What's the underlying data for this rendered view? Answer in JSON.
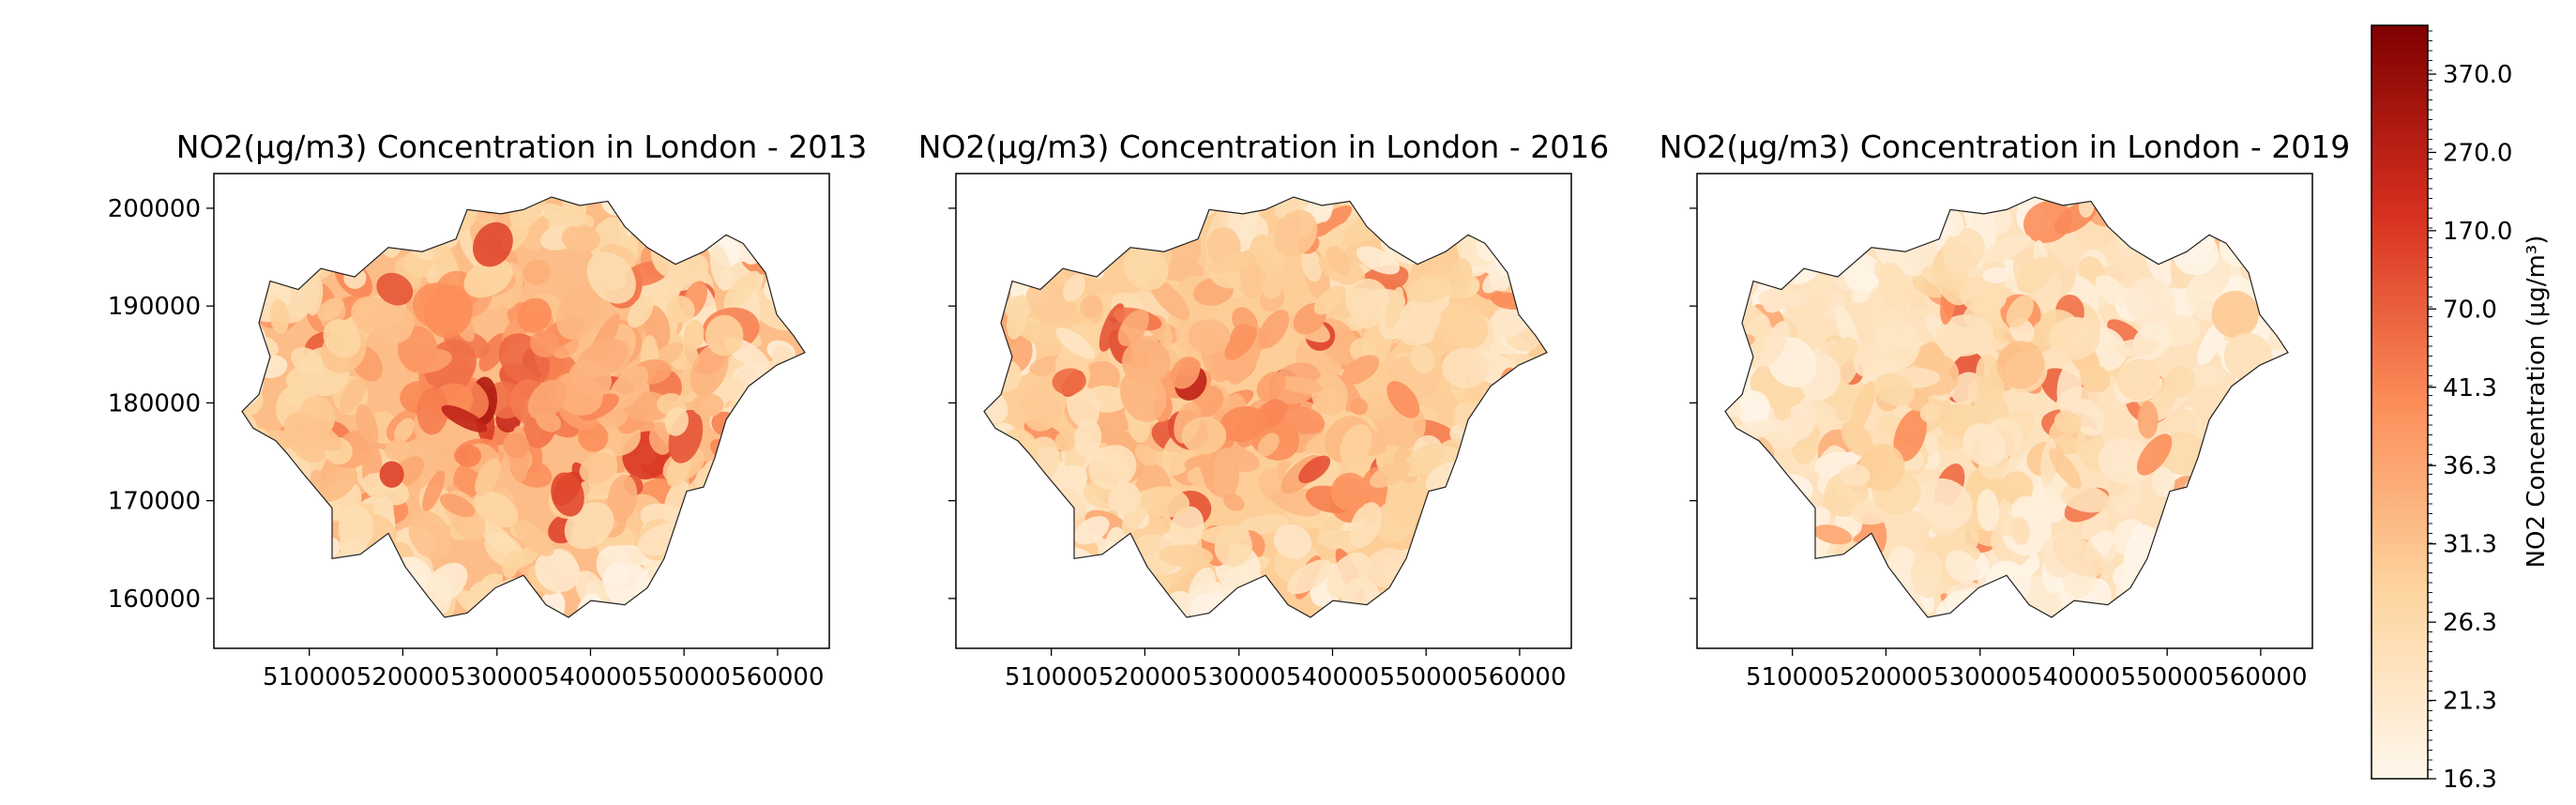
{
  "panels": [
    {
      "title": "NO2(μg/m3) Concentration in London - 2013",
      "x_ticks": [
        "510000",
        "520000",
        "530000",
        "540000",
        "550000",
        "560000"
      ],
      "y_ticks": [
        "200000",
        "190000",
        "180000",
        "170000",
        "160000"
      ],
      "level": 0.55
    },
    {
      "title": "NO2(μg/m3) Concentration in London - 2016",
      "x_ticks": [
        "510000",
        "520000",
        "530000",
        "540000",
        "550000",
        "560000"
      ],
      "y_ticks": [],
      "level": 0.45
    },
    {
      "title": "NO2(μg/m3) Concentration in London - 2019",
      "x_ticks": [
        "510000",
        "520000",
        "530000",
        "540000",
        "550000",
        "560000"
      ],
      "y_ticks": [],
      "level": 0.25
    }
  ],
  "colorbar": {
    "label": "NO2 Concentration (μg/m³)",
    "ticks": [
      "370.0",
      "270.0",
      "170.0",
      "70.0",
      "41.3",
      "36.3",
      "31.3",
      "26.3",
      "21.3",
      "16.3"
    ],
    "colors": [
      "#fff7ec",
      "#fdd49e",
      "#fc8d59",
      "#d7301f",
      "#7f0000"
    ]
  }
}
